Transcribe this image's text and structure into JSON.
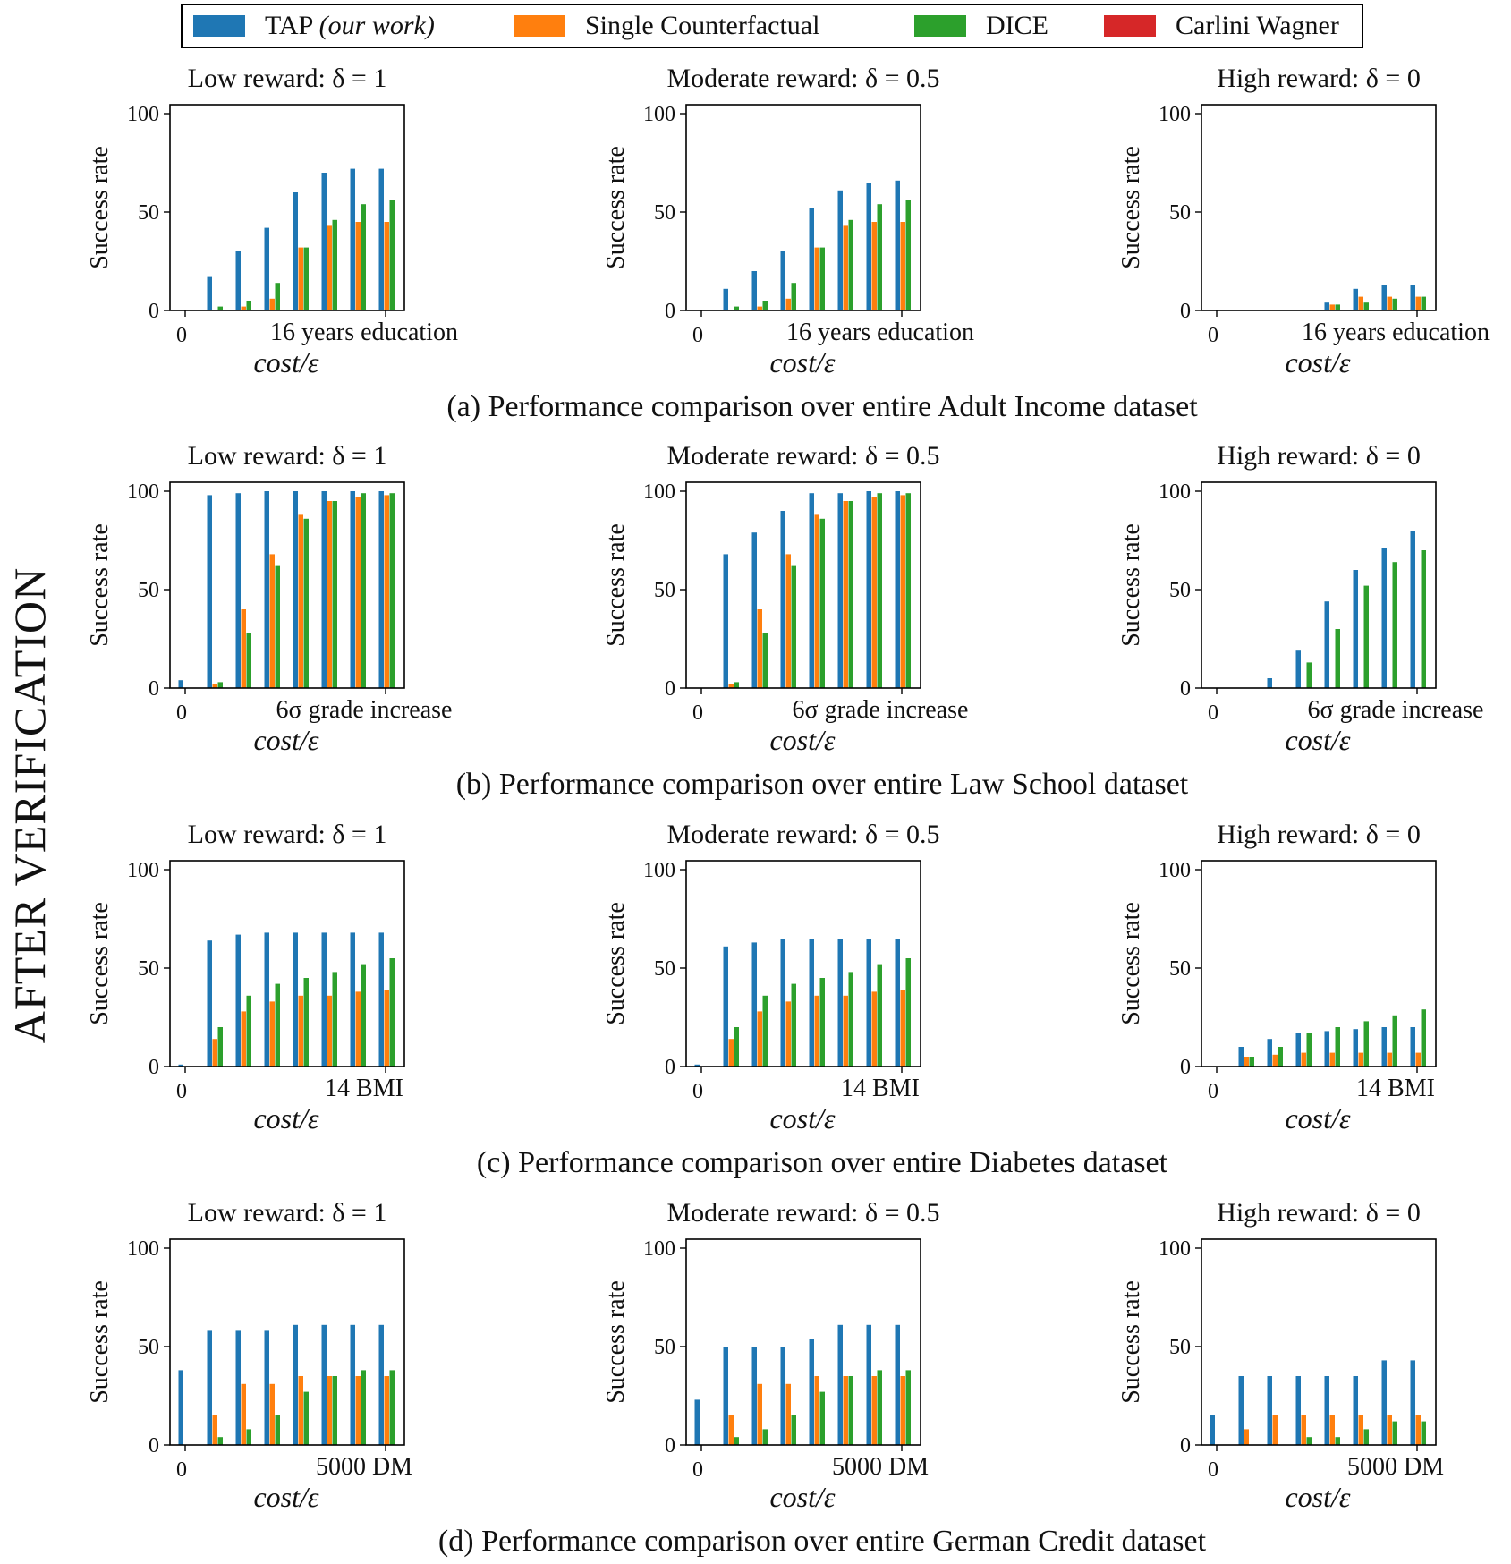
{
  "figure_side_label": "AFTER VERIFICATION",
  "legend": [
    {
      "name": "TAP",
      "note": "(our work)",
      "color": "#1f77b4"
    },
    {
      "name": "Single Counterfactual",
      "note": "",
      "color": "#ff7f0e"
    },
    {
      "name": "DICE",
      "note": "",
      "color": "#2ca02c"
    },
    {
      "name": "Carlini Wagner",
      "note": "",
      "color": "#d62728"
    }
  ],
  "ylabel": "Success rate",
  "xlabel": "cost/ε",
  "y_ticks": [
    "0",
    "50",
    "100"
  ],
  "chart_data": [
    {
      "caption": "(a) Performance comparison over entire Adult Income dataset",
      "x_ticks": [
        "0",
        "16 years education"
      ],
      "panels": [
        {
          "type": "bar",
          "title": "Low reward: δ = 1",
          "ylim": [
            0,
            100
          ],
          "series": [
            {
              "name": "TAP",
              "values": [
                0,
                17,
                30,
                42,
                60,
                70,
                72,
                72
              ]
            },
            {
              "name": "Single Counterfactual",
              "values": [
                0,
                0,
                2,
                6,
                32,
                43,
                45,
                45
              ]
            },
            {
              "name": "DICE",
              "values": [
                0,
                2,
                5,
                14,
                32,
                46,
                54,
                56
              ]
            },
            {
              "name": "Carlini Wagner",
              "values": [
                0,
                0,
                0,
                0,
                0,
                0,
                0,
                0
              ]
            }
          ]
        },
        {
          "type": "bar",
          "title": "Moderate reward: δ = 0.5",
          "ylim": [
            0,
            100
          ],
          "series": [
            {
              "name": "TAP",
              "values": [
                0,
                11,
                20,
                30,
                52,
                61,
                65,
                66
              ]
            },
            {
              "name": "Single Counterfactual",
              "values": [
                0,
                0,
                2,
                6,
                32,
                43,
                45,
                45
              ]
            },
            {
              "name": "DICE",
              "values": [
                0,
                2,
                5,
                14,
                32,
                46,
                54,
                56
              ]
            },
            {
              "name": "Carlini Wagner",
              "values": [
                0,
                0,
                0,
                0,
                0,
                0,
                0,
                0
              ]
            }
          ]
        },
        {
          "type": "bar",
          "title": "High reward: δ = 0",
          "ylim": [
            0,
            100
          ],
          "series": [
            {
              "name": "TAP",
              "values": [
                0,
                0,
                0,
                0,
                4,
                11,
                13,
                13
              ]
            },
            {
              "name": "Single Counterfactual",
              "values": [
                0,
                0,
                0,
                0,
                3,
                7,
                7,
                7
              ]
            },
            {
              "name": "DICE",
              "values": [
                0,
                0,
                0,
                0,
                3,
                4,
                6,
                7
              ]
            },
            {
              "name": "Carlini Wagner",
              "values": [
                0,
                0,
                0,
                0,
                0,
                0,
                0,
                0
              ]
            }
          ]
        }
      ]
    },
    {
      "caption": "(b) Performance comparison over entire Law School dataset",
      "x_ticks": [
        "0",
        "6σ grade increase"
      ],
      "panels": [
        {
          "type": "bar",
          "title": "Low reward: δ = 1",
          "ylim": [
            0,
            100
          ],
          "series": [
            {
              "name": "TAP",
              "values": [
                4,
                98,
                99,
                100,
                100,
                100,
                100,
                100
              ]
            },
            {
              "name": "Single Counterfactual",
              "values": [
                0,
                2,
                40,
                68,
                88,
                95,
                97,
                98
              ]
            },
            {
              "name": "DICE",
              "values": [
                0,
                3,
                28,
                62,
                86,
                95,
                99,
                99
              ]
            },
            {
              "name": "Carlini Wagner",
              "values": [
                0,
                0,
                0,
                0,
                0,
                0,
                0,
                0
              ]
            }
          ]
        },
        {
          "type": "bar",
          "title": "Moderate reward: δ = 0.5",
          "ylim": [
            0,
            100
          ],
          "series": [
            {
              "name": "TAP",
              "values": [
                0,
                68,
                79,
                90,
                99,
                99,
                100,
                100
              ]
            },
            {
              "name": "Single Counterfactual",
              "values": [
                0,
                2,
                40,
                68,
                88,
                95,
                97,
                98
              ]
            },
            {
              "name": "DICE",
              "values": [
                0,
                3,
                28,
                62,
                86,
                95,
                99,
                99
              ]
            },
            {
              "name": "Carlini Wagner",
              "values": [
                0,
                0,
                0,
                0,
                0,
                0,
                0,
                0
              ]
            }
          ]
        },
        {
          "type": "bar",
          "title": "High reward: δ = 0",
          "ylim": [
            0,
            100
          ],
          "series": [
            {
              "name": "TAP",
              "values": [
                0,
                0,
                5,
                19,
                44,
                60,
                71,
                80
              ]
            },
            {
              "name": "Single Counterfactual",
              "values": [
                0,
                0,
                0,
                0,
                0,
                0,
                0,
                0
              ]
            },
            {
              "name": "DICE",
              "values": [
                0,
                0,
                0,
                13,
                30,
                52,
                64,
                70
              ]
            },
            {
              "name": "Carlini Wagner",
              "values": [
                0,
                0,
                0,
                0,
                0,
                0,
                0,
                0
              ]
            }
          ]
        }
      ]
    },
    {
      "caption": "(c) Performance comparison over entire Diabetes dataset",
      "x_ticks": [
        "0",
        "14 BMI"
      ],
      "panels": [
        {
          "type": "bar",
          "title": "Low reward: δ = 1",
          "ylim": [
            0,
            100
          ],
          "series": [
            {
              "name": "TAP",
              "values": [
                1,
                64,
                67,
                68,
                68,
                68,
                68,
                68
              ]
            },
            {
              "name": "Single Counterfactual",
              "values": [
                0,
                14,
                28,
                33,
                36,
                36,
                38,
                39
              ]
            },
            {
              "name": "DICE",
              "values": [
                0,
                20,
                36,
                42,
                45,
                48,
                52,
                55
              ]
            },
            {
              "name": "Carlini Wagner",
              "values": [
                0,
                0,
                0,
                0,
                0,
                0,
                0,
                0
              ]
            }
          ]
        },
        {
          "type": "bar",
          "title": "Moderate reward: δ = 0.5",
          "ylim": [
            0,
            100
          ],
          "series": [
            {
              "name": "TAP",
              "values": [
                1,
                61,
                63,
                65,
                65,
                65,
                65,
                65
              ]
            },
            {
              "name": "Single Counterfactual",
              "values": [
                0,
                14,
                28,
                33,
                36,
                36,
                38,
                39
              ]
            },
            {
              "name": "DICE",
              "values": [
                0,
                20,
                36,
                42,
                45,
                48,
                52,
                55
              ]
            },
            {
              "name": "Carlini Wagner",
              "values": [
                0,
                0,
                0,
                0,
                0,
                0,
                0,
                0
              ]
            }
          ]
        },
        {
          "type": "bar",
          "title": "High reward: δ = 0",
          "ylim": [
            0,
            100
          ],
          "series": [
            {
              "name": "TAP",
              "values": [
                0,
                10,
                14,
                17,
                18,
                19,
                20,
                20
              ]
            },
            {
              "name": "Single Counterfactual",
              "values": [
                0,
                5,
                6,
                7,
                7,
                7,
                7,
                7
              ]
            },
            {
              "name": "DICE",
              "values": [
                0,
                5,
                10,
                17,
                20,
                23,
                26,
                29
              ]
            },
            {
              "name": "Carlini Wagner",
              "values": [
                0,
                0,
                0,
                0,
                0,
                0,
                0,
                0
              ]
            }
          ]
        }
      ]
    },
    {
      "caption": "(d) Performance comparison over entire German Credit dataset",
      "x_ticks": [
        "0",
        "5000 DM"
      ],
      "panels": [
        {
          "type": "bar",
          "title": "Low reward: δ = 1",
          "ylim": [
            0,
            100
          ],
          "series": [
            {
              "name": "TAP",
              "values": [
                38,
                58,
                58,
                58,
                61,
                61,
                61,
                61
              ]
            },
            {
              "name": "Single Counterfactual",
              "values": [
                0,
                15,
                31,
                31,
                35,
                35,
                35,
                35
              ]
            },
            {
              "name": "DICE",
              "values": [
                0,
                4,
                8,
                15,
                27,
                35,
                38,
                38
              ]
            },
            {
              "name": "Carlini Wagner",
              "values": [
                0,
                0,
                0,
                0,
                0,
                0,
                0,
                0
              ]
            }
          ]
        },
        {
          "type": "bar",
          "title": "Moderate reward: δ = 0.5",
          "ylim": [
            0,
            100
          ],
          "series": [
            {
              "name": "TAP",
              "values": [
                23,
                50,
                50,
                50,
                54,
                61,
                61,
                61
              ]
            },
            {
              "name": "Single Counterfactual",
              "values": [
                0,
                15,
                31,
                31,
                35,
                35,
                35,
                35
              ]
            },
            {
              "name": "DICE",
              "values": [
                0,
                4,
                8,
                15,
                27,
                35,
                38,
                38
              ]
            },
            {
              "name": "Carlini Wagner",
              "values": [
                0,
                0,
                0,
                0,
                0,
                0,
                0,
                0
              ]
            }
          ]
        },
        {
          "type": "bar",
          "title": "High reward: δ = 0",
          "ylim": [
            0,
            100
          ],
          "series": [
            {
              "name": "TAP",
              "values": [
                15,
                35,
                35,
                35,
                35,
                35,
                43,
                43
              ]
            },
            {
              "name": "Single Counterfactual",
              "values": [
                0,
                8,
                15,
                15,
                15,
                15,
                15,
                15
              ]
            },
            {
              "name": "DICE",
              "values": [
                0,
                0,
                0,
                4,
                4,
                8,
                12,
                12
              ]
            },
            {
              "name": "Carlini Wagner",
              "values": [
                0,
                0,
                0,
                0,
                0,
                0,
                0,
                0
              ]
            }
          ]
        }
      ]
    }
  ]
}
